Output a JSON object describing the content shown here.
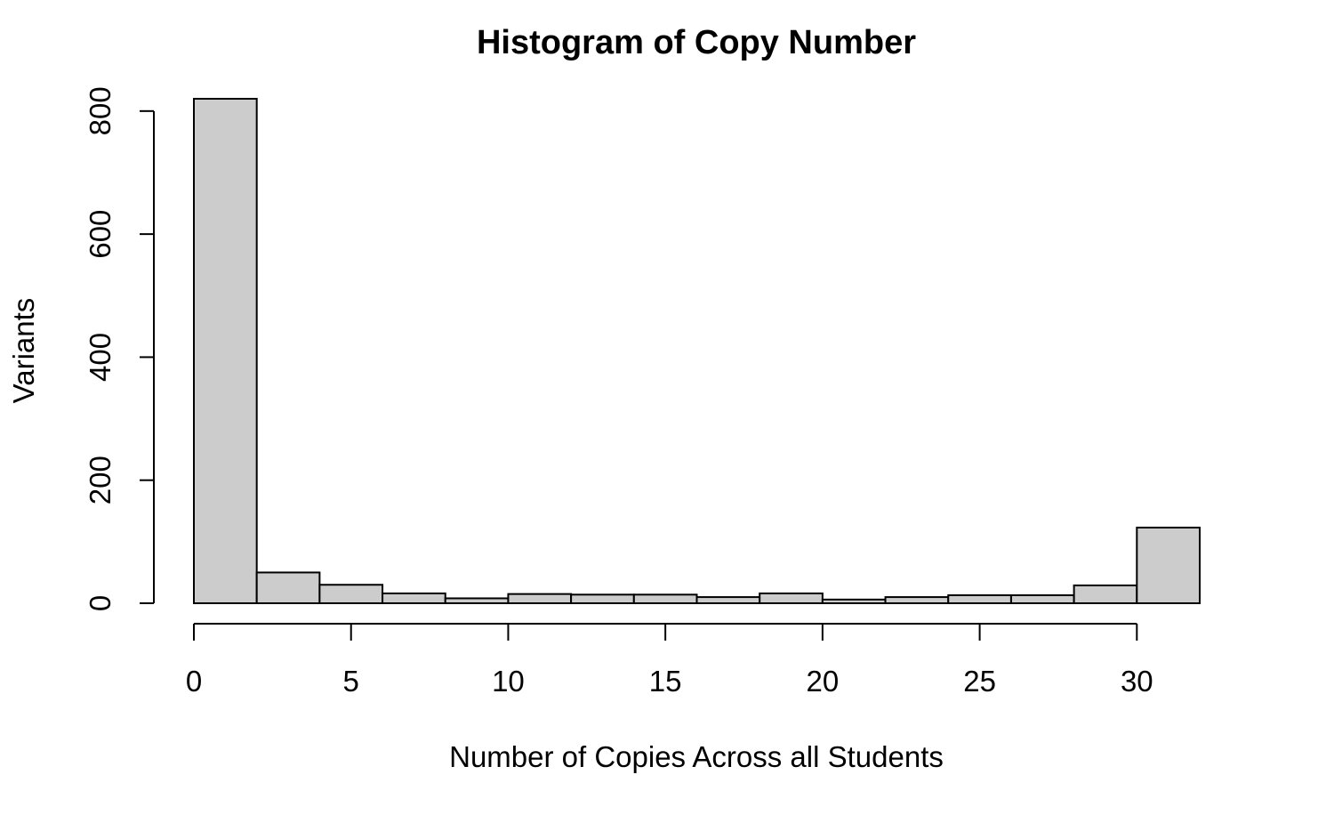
{
  "chart_data": {
    "type": "bar",
    "title": "Histogram of Copy Number",
    "xlabel": "Number of Copies Across all Students",
    "ylabel": "Variants",
    "bin_edges": [
      0,
      2,
      4,
      6,
      8,
      10,
      12,
      14,
      16,
      18,
      20,
      22,
      24,
      26,
      28,
      30,
      32
    ],
    "values": [
      820,
      50,
      30,
      16,
      8,
      15,
      14,
      14,
      10,
      16,
      6,
      10,
      13,
      13,
      29,
      123
    ],
    "xlim": [
      0,
      32
    ],
    "ylim": [
      0,
      820
    ],
    "x_ticks": [
      0,
      5,
      10,
      15,
      20,
      25,
      30
    ],
    "x_tick_labels": [
      "0",
      "5",
      "10",
      "15",
      "20",
      "25",
      "30"
    ],
    "y_ticks": [
      0,
      200,
      400,
      600,
      800
    ],
    "y_tick_labels": [
      "0",
      "200",
      "400",
      "600",
      "800"
    ],
    "bar_color": "#cccccc",
    "grid": false,
    "legend": "none"
  }
}
